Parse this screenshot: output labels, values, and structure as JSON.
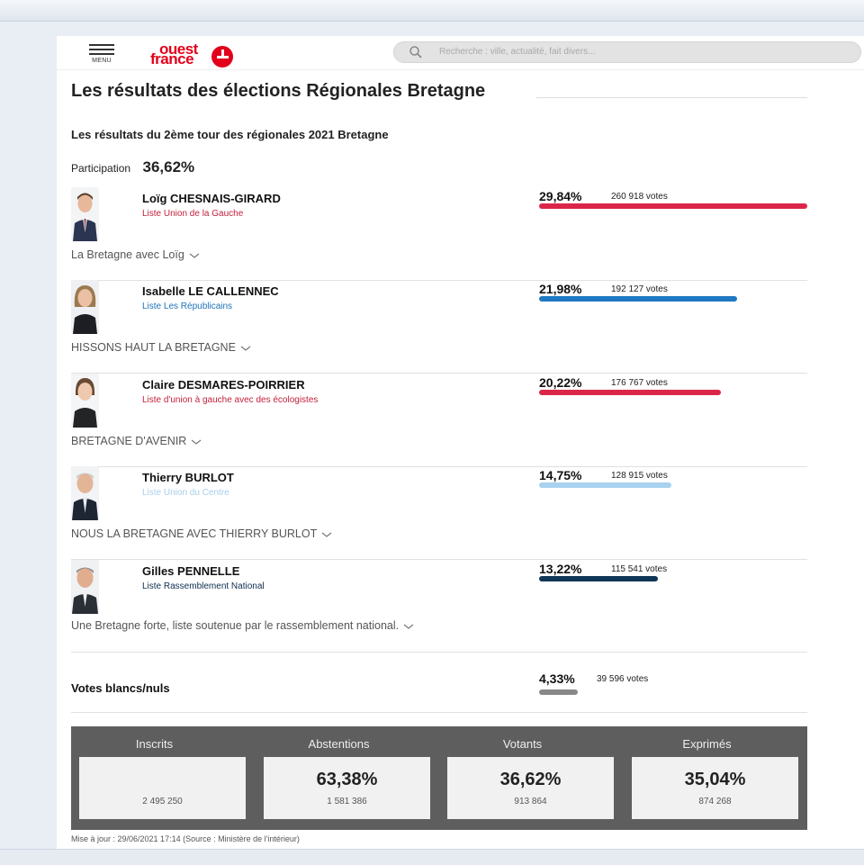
{
  "header": {
    "menu_label": "MENU",
    "logo_line1": "ouest",
    "logo_line2": "france",
    "search_placeholder": "Recherche : ville, actualité, fait divers..."
  },
  "page_title": "Les résultats des élections Régionales Bretagne",
  "subtitle": "Les résultats du 2ème tour des régionales 2021 Bretagne",
  "participation": {
    "label": "Participation",
    "value": "36,62%"
  },
  "candidates": [
    {
      "name": "Loïg CHESNAIS-GIRARD",
      "list": "Liste Union de la Gauche",
      "list_color": "#c4203c",
      "percent": "29,84%",
      "percent_value": 29.84,
      "votes": "260 918 votes",
      "bar_color": "#dc2649",
      "slogan": "La Bretagne avec Loïg"
    },
    {
      "name": "Isabelle LE CALLENNEC",
      "list": "Liste Les Républicains",
      "list_color": "#1f72b8",
      "percent": "21,98%",
      "percent_value": 21.98,
      "votes": "192 127 votes",
      "bar_color": "#1f78c1",
      "slogan": "HISSONS HAUT LA BRETAGNE"
    },
    {
      "name": "Claire DESMARES-POIRRIER",
      "list": "Liste d'union à gauche avec des écologistes",
      "list_color": "#c4203c",
      "percent": "20,22%",
      "percent_value": 20.22,
      "votes": "176 767 votes",
      "bar_color": "#dc2649",
      "slogan": "BRETAGNE D'AVENIR"
    },
    {
      "name": "Thierry BURLOT",
      "list": "Liste Union du Centre",
      "list_color": "#a9cfe9",
      "percent": "14,75%",
      "percent_value": 14.75,
      "votes": "128 915 votes",
      "bar_color": "#a8d2ee",
      "slogan": "NOUS LA BRETAGNE AVEC THIERRY BURLOT"
    },
    {
      "name": "Gilles PENNELLE",
      "list": "Liste Rassemblement National",
      "list_color": "#0d2d4e",
      "percent": "13,22%",
      "percent_value": 13.22,
      "votes": "115 541 votes",
      "bar_color": "#0f3557",
      "slogan": "Une Bretagne forte, liste soutenue par le rassemblement national."
    }
  ],
  "blank_votes": {
    "label": "Votes blancs/nuls",
    "percent": "4,33%",
    "percent_value": 4.33,
    "votes": "39 596 votes",
    "bar_color": "#888888"
  },
  "stats": [
    {
      "label": "Inscrits",
      "big": "",
      "small": "2 495 250"
    },
    {
      "label": "Abstentions",
      "big": "63,38%",
      "small": "1 581 386"
    },
    {
      "label": "Votants",
      "big": "36,62%",
      "small": "913 864"
    },
    {
      "label": "Exprimés",
      "big": "35,04%",
      "small": "874 268"
    }
  ],
  "update_text": "Mise à jour : 29/06/2021 17:14 (Source : Ministère de l'intérieur)"
}
